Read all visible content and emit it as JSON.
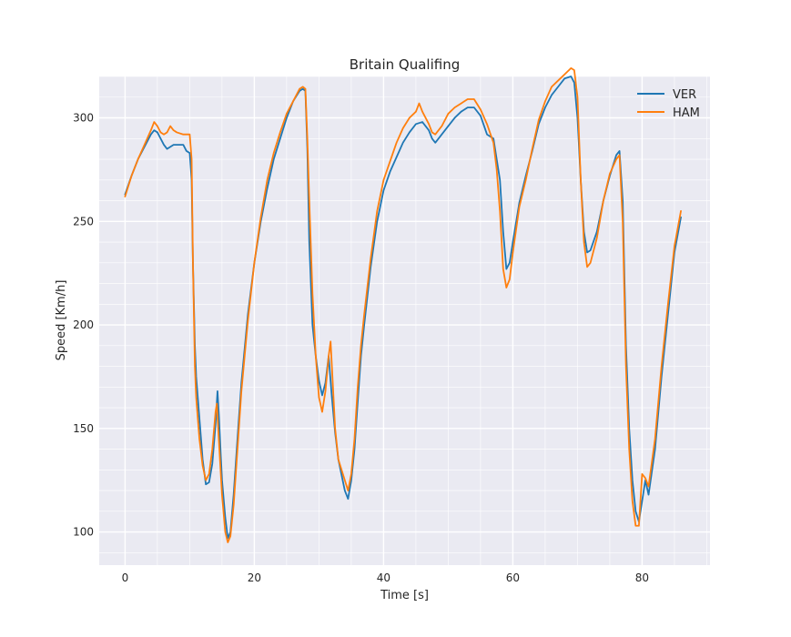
{
  "chart_data": {
    "type": "line",
    "title": "Britain Qualifing",
    "xlabel": "Time [s]",
    "ylabel": "Speed [Km/h]",
    "xlim": [
      -4,
      90.5
    ],
    "ylim": [
      84,
      320
    ],
    "xticks": [
      0,
      20,
      40,
      60,
      80
    ],
    "yticks": [
      100,
      150,
      200,
      250,
      300
    ],
    "grid": true,
    "legend_position": "top-right",
    "series": [
      {
        "name": "VER",
        "color": "#1f77b4",
        "points": [
          [
            0,
            263
          ],
          [
            1,
            272
          ],
          [
            2,
            280
          ],
          [
            3,
            286
          ],
          [
            4,
            292
          ],
          [
            4.5,
            294
          ],
          [
            5,
            293
          ],
          [
            5.5,
            290
          ],
          [
            6,
            287
          ],
          [
            6.5,
            285
          ],
          [
            7,
            286
          ],
          [
            7.5,
            287
          ],
          [
            8,
            287
          ],
          [
            9,
            287
          ],
          [
            9.5,
            284
          ],
          [
            10,
            283
          ],
          [
            10.3,
            270
          ],
          [
            10.5,
            230
          ],
          [
            10.8,
            190
          ],
          [
            11,
            175
          ],
          [
            11.5,
            155
          ],
          [
            12,
            135
          ],
          [
            12.5,
            123
          ],
          [
            13,
            124
          ],
          [
            13.5,
            133
          ],
          [
            14,
            152
          ],
          [
            14.3,
            168
          ],
          [
            14.5,
            157
          ],
          [
            15,
            125
          ],
          [
            15.5,
            107
          ],
          [
            15.9,
            97
          ],
          [
            16.3,
            100
          ],
          [
            16.8,
            118
          ],
          [
            17.5,
            150
          ],
          [
            18,
            172
          ],
          [
            19,
            205
          ],
          [
            20,
            230
          ],
          [
            21,
            250
          ],
          [
            22,
            266
          ],
          [
            23,
            280
          ],
          [
            24,
            290
          ],
          [
            25,
            300
          ],
          [
            26,
            308
          ],
          [
            27,
            313
          ],
          [
            27.5,
            314
          ],
          [
            27.9,
            313
          ],
          [
            28.2,
            285
          ],
          [
            28.5,
            240
          ],
          [
            29,
            200
          ],
          [
            29.5,
            185
          ],
          [
            30,
            173
          ],
          [
            30.5,
            166
          ],
          [
            31,
            172
          ],
          [
            31.5,
            185
          ],
          [
            32,
            165
          ],
          [
            32.5,
            148
          ],
          [
            33,
            135
          ],
          [
            34,
            120
          ],
          [
            34.5,
            116
          ],
          [
            35,
            125
          ],
          [
            35.5,
            140
          ],
          [
            36,
            163
          ],
          [
            36.5,
            185
          ],
          [
            37,
            200
          ],
          [
            38,
            228
          ],
          [
            39,
            250
          ],
          [
            40,
            265
          ],
          [
            41,
            274
          ],
          [
            42,
            281
          ],
          [
            43,
            288
          ],
          [
            44,
            293
          ],
          [
            45,
            297
          ],
          [
            46,
            298
          ],
          [
            47,
            294
          ],
          [
            47.5,
            290
          ],
          [
            48,
            288
          ],
          [
            49,
            292
          ],
          [
            50,
            296
          ],
          [
            51,
            300
          ],
          [
            52,
            303
          ],
          [
            53,
            305
          ],
          [
            54,
            305
          ],
          [
            55,
            301
          ],
          [
            56,
            292
          ],
          [
            57,
            290
          ],
          [
            57.5,
            280
          ],
          [
            58,
            270
          ],
          [
            58.5,
            245
          ],
          [
            59,
            227
          ],
          [
            59.5,
            230
          ],
          [
            60,
            240
          ],
          [
            61,
            259
          ],
          [
            62,
            272
          ],
          [
            63,
            284
          ],
          [
            64,
            297
          ],
          [
            65,
            305
          ],
          [
            66,
            311
          ],
          [
            67,
            315
          ],
          [
            68,
            319
          ],
          [
            69,
            320
          ],
          [
            69.5,
            317
          ],
          [
            70,
            300
          ],
          [
            70.5,
            270
          ],
          [
            71,
            245
          ],
          [
            71.5,
            235
          ],
          [
            72,
            236
          ],
          [
            73,
            245
          ],
          [
            74,
            260
          ],
          [
            75,
            272
          ],
          [
            76,
            282
          ],
          [
            76.5,
            284
          ],
          [
            77,
            260
          ],
          [
            77.5,
            190
          ],
          [
            78,
            150
          ],
          [
            78.5,
            125
          ],
          [
            79,
            110
          ],
          [
            79.5,
            105
          ],
          [
            80,
            115
          ],
          [
            80.5,
            125
          ],
          [
            81,
            118
          ],
          [
            82,
            140
          ],
          [
            83,
            175
          ],
          [
            84,
            205
          ],
          [
            85,
            235
          ],
          [
            86,
            252
          ]
        ]
      },
      {
        "name": "HAM",
        "color": "#ff7f0e",
        "points": [
          [
            0,
            262
          ],
          [
            1,
            272
          ],
          [
            2,
            280
          ],
          [
            3,
            287
          ],
          [
            4,
            294
          ],
          [
            4.5,
            298
          ],
          [
            5,
            296
          ],
          [
            5.5,
            293
          ],
          [
            6,
            292
          ],
          [
            6.5,
            293
          ],
          [
            7,
            296
          ],
          [
            7.5,
            294
          ],
          [
            8,
            293
          ],
          [
            9,
            292
          ],
          [
            9.5,
            292
          ],
          [
            10,
            292
          ],
          [
            10.3,
            280
          ],
          [
            10.5,
            230
          ],
          [
            10.8,
            180
          ],
          [
            11,
            165
          ],
          [
            11.5,
            145
          ],
          [
            12,
            132
          ],
          [
            12.5,
            125
          ],
          [
            13,
            128
          ],
          [
            13.5,
            140
          ],
          [
            14,
            158
          ],
          [
            14.2,
            162
          ],
          [
            14.5,
            145
          ],
          [
            15,
            118
          ],
          [
            15.5,
            100
          ],
          [
            15.9,
            95
          ],
          [
            16.3,
            98
          ],
          [
            16.8,
            113
          ],
          [
            17.5,
            145
          ],
          [
            18,
            168
          ],
          [
            19,
            202
          ],
          [
            20,
            230
          ],
          [
            21,
            252
          ],
          [
            22,
            270
          ],
          [
            23,
            283
          ],
          [
            24,
            293
          ],
          [
            25,
            302
          ],
          [
            26,
            308
          ],
          [
            27,
            314
          ],
          [
            27.5,
            315
          ],
          [
            27.9,
            314
          ],
          [
            28.2,
            290
          ],
          [
            28.5,
            260
          ],
          [
            29,
            215
          ],
          [
            29.5,
            185
          ],
          [
            30,
            165
          ],
          [
            30.5,
            158
          ],
          [
            31,
            168
          ],
          [
            31.5,
            185
          ],
          [
            31.8,
            192
          ],
          [
            32,
            180
          ],
          [
            32.5,
            150
          ],
          [
            33,
            135
          ],
          [
            34,
            125
          ],
          [
            34.5,
            120
          ],
          [
            35,
            128
          ],
          [
            35.5,
            145
          ],
          [
            36,
            170
          ],
          [
            36.5,
            190
          ],
          [
            37,
            205
          ],
          [
            38,
            232
          ],
          [
            39,
            255
          ],
          [
            40,
            270
          ],
          [
            41,
            279
          ],
          [
            42,
            288
          ],
          [
            43,
            295
          ],
          [
            44,
            300
          ],
          [
            45,
            303
          ],
          [
            45.5,
            307
          ],
          [
            46,
            303
          ],
          [
            47,
            297
          ],
          [
            47.5,
            293
          ],
          [
            48,
            292
          ],
          [
            49,
            296
          ],
          [
            50,
            302
          ],
          [
            51,
            305
          ],
          [
            52,
            307
          ],
          [
            53,
            309
          ],
          [
            54,
            309
          ],
          [
            55,
            304
          ],
          [
            56,
            297
          ],
          [
            57,
            288
          ],
          [
            57.5,
            275
          ],
          [
            58,
            255
          ],
          [
            58.5,
            227
          ],
          [
            59,
            218
          ],
          [
            59.5,
            222
          ],
          [
            60,
            235
          ],
          [
            61,
            257
          ],
          [
            62,
            270
          ],
          [
            63,
            285
          ],
          [
            64,
            299
          ],
          [
            65,
            308
          ],
          [
            66,
            315
          ],
          [
            67,
            318
          ],
          [
            68,
            321
          ],
          [
            69,
            324
          ],
          [
            69.5,
            323
          ],
          [
            70,
            310
          ],
          [
            70.5,
            270
          ],
          [
            71,
            240
          ],
          [
            71.5,
            228
          ],
          [
            72,
            230
          ],
          [
            73,
            242
          ],
          [
            74,
            260
          ],
          [
            75,
            273
          ],
          [
            76,
            280
          ],
          [
            76.5,
            282
          ],
          [
            77,
            250
          ],
          [
            77.5,
            180
          ],
          [
            78,
            140
          ],
          [
            78.5,
            115
          ],
          [
            79,
            103
          ],
          [
            79.5,
            103
          ],
          [
            80,
            128
          ],
          [
            80.5,
            126
          ],
          [
            81,
            122
          ],
          [
            82,
            145
          ],
          [
            83,
            180
          ],
          [
            84,
            210
          ],
          [
            85,
            238
          ],
          [
            86,
            255
          ]
        ]
      }
    ]
  }
}
